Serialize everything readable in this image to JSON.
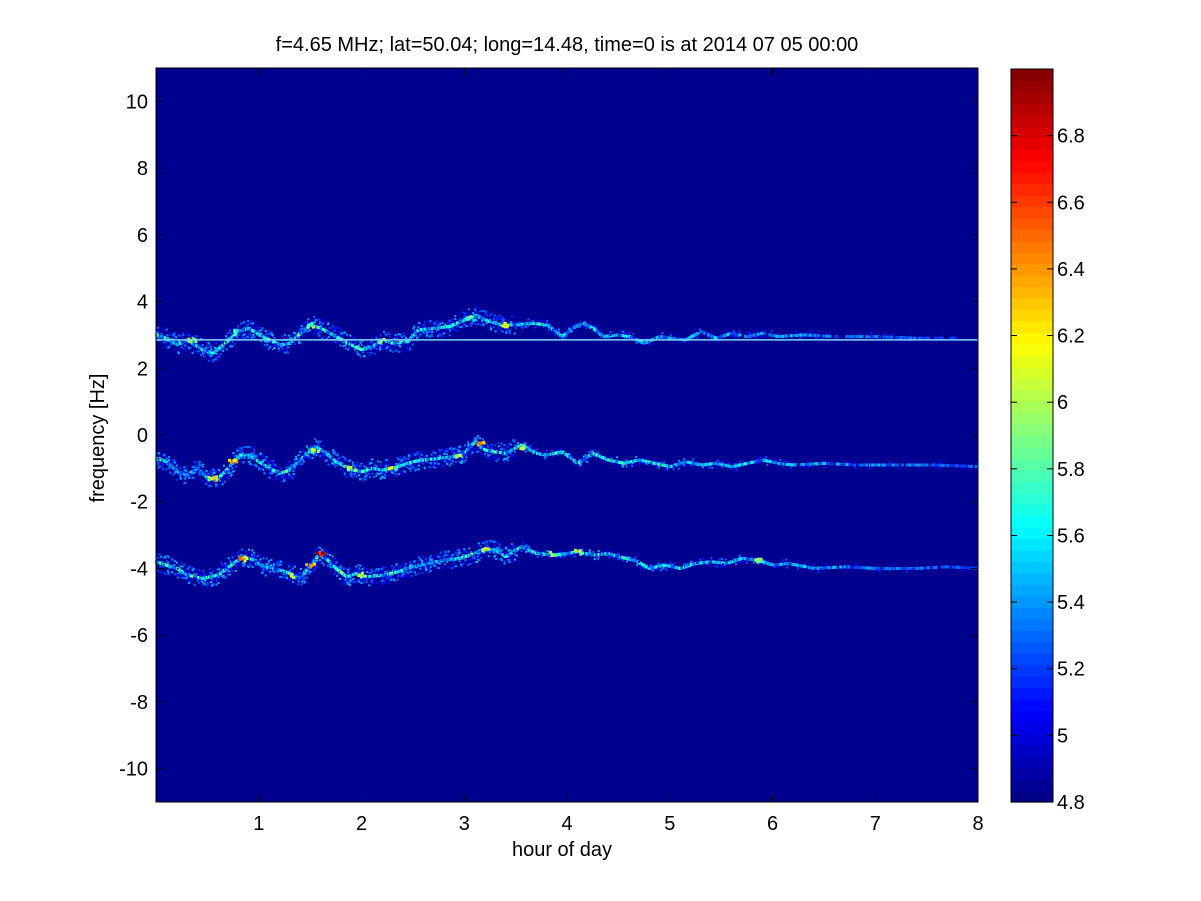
{
  "chart_data": {
    "type": "heatmap",
    "title": "f=4.65 MHz;  lat=50.04; long=14.48, time=0 is at 2014 07 05 00:00",
    "xlabel": "hour of day",
    "ylabel": "frequency [Hz]",
    "xlim": [
      0,
      8
    ],
    "ylim": [
      -11,
      11
    ],
    "x_ticks": [
      1,
      2,
      3,
      4,
      5,
      6,
      7,
      8
    ],
    "y_ticks": [
      -10,
      -8,
      -6,
      -4,
      -2,
      0,
      2,
      4,
      6,
      8,
      10
    ],
    "colormap": "jet",
    "background_color": "#00008f",
    "colorbar": {
      "range": [
        4.8,
        7.0
      ],
      "ticks": [
        4.8,
        5,
        5.2,
        5.4,
        5.6,
        5.8,
        6,
        6.2,
        6.4,
        6.6,
        6.8
      ]
    },
    "reference_line": {
      "frequency": 2.85,
      "color": "#7fd7ff"
    },
    "traces": [
      {
        "points": [
          [
            0.0,
            3.0
          ],
          [
            0.1,
            2.9
          ],
          [
            0.2,
            2.7
          ],
          [
            0.3,
            2.85
          ],
          [
            0.45,
            2.55
          ],
          [
            0.55,
            2.45
          ],
          [
            0.65,
            2.7
          ],
          [
            0.8,
            3.1
          ],
          [
            0.9,
            3.2
          ],
          [
            1.0,
            3.0
          ],
          [
            1.1,
            2.85
          ],
          [
            1.2,
            2.7
          ],
          [
            1.3,
            2.75
          ],
          [
            1.42,
            3.1
          ],
          [
            1.5,
            3.3
          ],
          [
            1.6,
            3.2
          ],
          [
            1.75,
            2.95
          ],
          [
            1.9,
            2.7
          ],
          [
            2.0,
            2.55
          ],
          [
            2.1,
            2.65
          ],
          [
            2.2,
            2.85
          ],
          [
            2.3,
            2.75
          ],
          [
            2.45,
            2.8
          ],
          [
            2.55,
            3.15
          ],
          [
            2.7,
            3.2
          ],
          [
            2.85,
            3.25
          ],
          [
            3.0,
            3.45
          ],
          [
            3.1,
            3.6
          ],
          [
            3.2,
            3.45
          ],
          [
            3.35,
            3.3
          ],
          [
            3.5,
            3.3
          ],
          [
            3.65,
            3.35
          ],
          [
            3.8,
            3.3
          ],
          [
            3.95,
            2.95
          ],
          [
            4.05,
            3.2
          ],
          [
            4.15,
            3.35
          ],
          [
            4.25,
            3.2
          ],
          [
            4.35,
            2.95
          ],
          [
            4.5,
            3.0
          ],
          [
            4.6,
            2.95
          ],
          [
            4.75,
            2.75
          ],
          [
            4.9,
            2.95
          ],
          [
            5.0,
            2.9
          ],
          [
            5.15,
            2.85
          ],
          [
            5.3,
            3.1
          ],
          [
            5.45,
            2.9
          ],
          [
            5.6,
            3.05
          ],
          [
            5.75,
            2.95
          ],
          [
            5.9,
            3.05
          ],
          [
            6.05,
            2.95
          ],
          [
            6.3,
            3.0
          ],
          [
            6.6,
            2.95
          ],
          [
            7.0,
            2.95
          ],
          [
            7.4,
            2.9
          ],
          [
            7.8,
            2.9
          ]
        ],
        "fade_from_hour": 3.0,
        "fade_to_hour": 8.0,
        "hotspots": [
          [
            0.35,
            2.85,
            6.3
          ],
          [
            0.8,
            3.1,
            6.0
          ],
          [
            1.5,
            3.3,
            6.1
          ],
          [
            2.2,
            2.85,
            6.2
          ],
          [
            3.05,
            3.5,
            6.0
          ],
          [
            3.4,
            3.3,
            6.2
          ]
        ]
      },
      {
        "points": [
          [
            0.0,
            -0.7
          ],
          [
            0.1,
            -0.8
          ],
          [
            0.2,
            -1.1
          ],
          [
            0.3,
            -1.2
          ],
          [
            0.4,
            -1.0
          ],
          [
            0.5,
            -1.3
          ],
          [
            0.6,
            -1.3
          ],
          [
            0.7,
            -1.0
          ],
          [
            0.8,
            -0.6
          ],
          [
            0.9,
            -0.6
          ],
          [
            1.0,
            -0.8
          ],
          [
            1.1,
            -1.0
          ],
          [
            1.2,
            -1.15
          ],
          [
            1.3,
            -1.05
          ],
          [
            1.45,
            -0.6
          ],
          [
            1.55,
            -0.35
          ],
          [
            1.65,
            -0.55
          ],
          [
            1.75,
            -0.8
          ],
          [
            1.9,
            -1.05
          ],
          [
            2.0,
            -1.1
          ],
          [
            2.1,
            -1.0
          ],
          [
            2.2,
            -1.05
          ],
          [
            2.35,
            -0.95
          ],
          [
            2.5,
            -0.8
          ],
          [
            2.6,
            -0.75
          ],
          [
            2.75,
            -0.7
          ],
          [
            2.9,
            -0.65
          ],
          [
            3.0,
            -0.55
          ],
          [
            3.1,
            -0.2
          ],
          [
            3.2,
            -0.45
          ],
          [
            3.3,
            -0.5
          ],
          [
            3.4,
            -0.55
          ],
          [
            3.55,
            -0.3
          ],
          [
            3.7,
            -0.55
          ],
          [
            3.8,
            -0.6
          ],
          [
            3.95,
            -0.5
          ],
          [
            4.1,
            -0.85
          ],
          [
            4.25,
            -0.55
          ],
          [
            4.4,
            -0.75
          ],
          [
            4.55,
            -0.85
          ],
          [
            4.7,
            -0.75
          ],
          [
            4.85,
            -0.85
          ],
          [
            5.0,
            -0.95
          ],
          [
            5.15,
            -0.8
          ],
          [
            5.3,
            -0.9
          ],
          [
            5.45,
            -0.85
          ],
          [
            5.6,
            -0.95
          ],
          [
            5.75,
            -0.85
          ],
          [
            5.9,
            -0.75
          ],
          [
            6.05,
            -0.85
          ],
          [
            6.2,
            -0.9
          ],
          [
            6.5,
            -0.85
          ],
          [
            6.8,
            -0.9
          ],
          [
            7.2,
            -0.9
          ],
          [
            7.6,
            -0.9
          ],
          [
            8.0,
            -0.95
          ]
        ],
        "fade_from_hour": 4.5,
        "fade_to_hour": 8.0,
        "hotspots": [
          [
            0.55,
            -1.3,
            6.3
          ],
          [
            0.75,
            -0.75,
            6.5
          ],
          [
            1.55,
            -0.45,
            6.2
          ],
          [
            1.9,
            -1.0,
            6.4
          ],
          [
            2.3,
            -0.95,
            6.2
          ],
          [
            2.95,
            -0.6,
            6.3
          ],
          [
            3.15,
            -0.25,
            6.6
          ],
          [
            3.55,
            -0.35,
            6.2
          ]
        ]
      },
      {
        "points": [
          [
            0.0,
            -3.8
          ],
          [
            0.1,
            -3.9
          ],
          [
            0.2,
            -4.0
          ],
          [
            0.3,
            -4.2
          ],
          [
            0.45,
            -4.3
          ],
          [
            0.6,
            -4.2
          ],
          [
            0.75,
            -3.85
          ],
          [
            0.85,
            -3.65
          ],
          [
            0.95,
            -3.75
          ],
          [
            1.05,
            -3.95
          ],
          [
            1.15,
            -4.0
          ],
          [
            1.3,
            -4.15
          ],
          [
            1.4,
            -4.3
          ],
          [
            1.5,
            -3.9
          ],
          [
            1.58,
            -3.6
          ],
          [
            1.65,
            -3.7
          ],
          [
            1.75,
            -4.0
          ],
          [
            1.85,
            -4.25
          ],
          [
            1.95,
            -4.15
          ],
          [
            2.05,
            -4.25
          ],
          [
            2.2,
            -4.2
          ],
          [
            2.35,
            -4.1
          ],
          [
            2.5,
            -3.95
          ],
          [
            2.65,
            -3.85
          ],
          [
            2.8,
            -3.75
          ],
          [
            2.95,
            -3.7
          ],
          [
            3.1,
            -3.55
          ],
          [
            3.2,
            -3.4
          ],
          [
            3.3,
            -3.45
          ],
          [
            3.4,
            -3.65
          ],
          [
            3.55,
            -3.35
          ],
          [
            3.7,
            -3.55
          ],
          [
            3.85,
            -3.6
          ],
          [
            4.0,
            -3.55
          ],
          [
            4.1,
            -3.5
          ],
          [
            4.25,
            -3.6
          ],
          [
            4.4,
            -3.55
          ],
          [
            4.5,
            -3.65
          ],
          [
            4.65,
            -3.75
          ],
          [
            4.8,
            -4.0
          ],
          [
            4.95,
            -3.9
          ],
          [
            5.1,
            -4.0
          ],
          [
            5.25,
            -3.85
          ],
          [
            5.4,
            -3.8
          ],
          [
            5.55,
            -3.85
          ],
          [
            5.7,
            -3.7
          ],
          [
            5.85,
            -3.75
          ],
          [
            6.0,
            -3.9
          ],
          [
            6.15,
            -3.85
          ],
          [
            6.4,
            -4.0
          ],
          [
            6.7,
            -3.95
          ],
          [
            7.0,
            -4.0
          ],
          [
            7.4,
            -4.0
          ],
          [
            7.7,
            -3.95
          ],
          [
            8.0,
            -4.0
          ]
        ],
        "fade_from_hour": 4.5,
        "fade_to_hour": 8.0,
        "hotspots": [
          [
            0.85,
            -3.7,
            6.6
          ],
          [
            1.5,
            -3.9,
            6.7
          ],
          [
            1.6,
            -3.55,
            7.0
          ],
          [
            1.35,
            -4.2,
            6.4
          ],
          [
            2.0,
            -4.2,
            6.3
          ],
          [
            3.2,
            -3.4,
            6.4
          ],
          [
            4.1,
            -3.5,
            6.2
          ],
          [
            3.85,
            -3.55,
            6.2
          ],
          [
            5.85,
            -3.75,
            6.1
          ]
        ]
      }
    ]
  }
}
